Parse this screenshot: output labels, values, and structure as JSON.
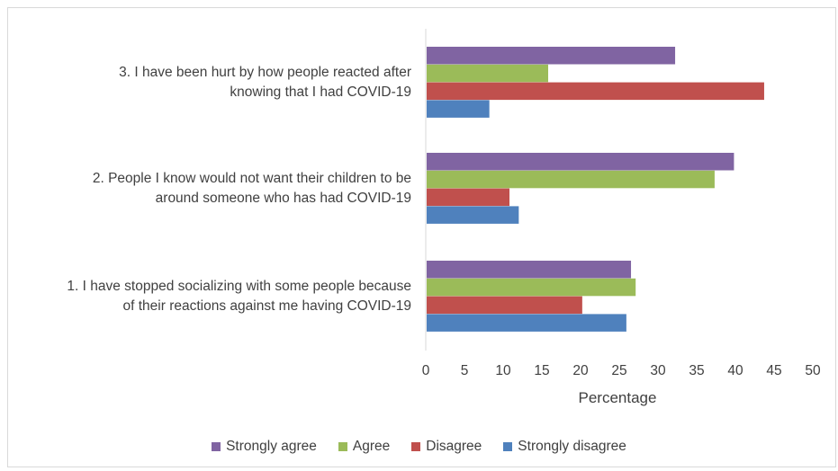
{
  "chart_data": {
    "type": "bar",
    "orientation": "horizontal",
    "title": "",
    "xlabel": "Percentage",
    "ylabel": "",
    "xlim": [
      0,
      50
    ],
    "xticks": [
      0,
      5,
      10,
      15,
      20,
      25,
      30,
      35,
      40,
      45,
      50
    ],
    "grid": false,
    "legend_position": "bottom",
    "categories": [
      [
        "3. I have been hurt by how people reacted after",
        "knowing that I had COVID-19"
      ],
      [
        "2. People I know would not want their children to be",
        "around someone who has had COVID-19"
      ],
      [
        "1. I have stopped socializing with some people because",
        "of their reactions against me having COVID-19"
      ]
    ],
    "series": [
      {
        "name": "Strongly agree",
        "color": "#8064a2",
        "values": [
          32.1,
          39.7,
          26.4
        ]
      },
      {
        "name": "Agree",
        "color": "#9bbb59",
        "values": [
          15.7,
          37.2,
          27.0
        ]
      },
      {
        "name": "Disagree",
        "color": "#c0504d",
        "values": [
          43.6,
          10.7,
          20.1
        ]
      },
      {
        "name": "Strongly disagree",
        "color": "#4f81bd",
        "values": [
          8.1,
          11.9,
          25.8
        ]
      }
    ]
  }
}
